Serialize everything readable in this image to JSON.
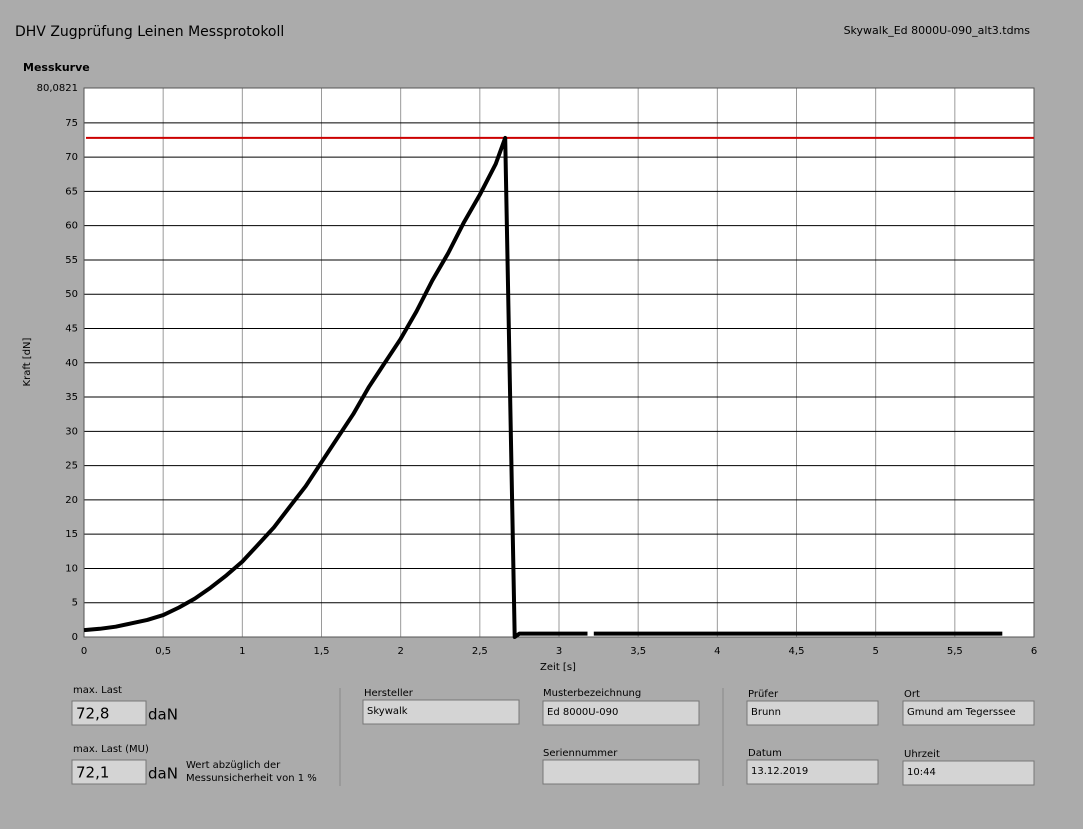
{
  "header": {
    "title": "DHV Zugprüfung Leinen Messprotokoll",
    "file": "Skywalk_Ed 8000U-090_alt3.tdms"
  },
  "chart_data": {
    "type": "line",
    "title": "Messkurve",
    "xlabel": "Zeit [s]",
    "ylabel": "Kraft [dN]",
    "x": [
      0,
      0.1,
      0.2,
      0.3,
      0.4,
      0.5,
      0.6,
      0.7,
      0.8,
      0.9,
      1,
      1.1,
      1.2,
      1.3,
      1.4,
      1.5,
      1.6,
      1.7,
      1.8,
      1.9,
      2,
      2.1,
      2.2,
      2.3,
      2.4,
      2.5,
      2.6,
      2.66,
      2.72,
      2.75,
      3.18,
      3.2,
      3.22,
      5.8
    ],
    "values": [
      1,
      1.2,
      1.5,
      2,
      2.5,
      3.2,
      4.3,
      5.6,
      7.2,
      9,
      11,
      13.5,
      16,
      19,
      22,
      25.5,
      29,
      32.5,
      36.5,
      40,
      43.5,
      47.5,
      52,
      56,
      60.5,
      64.5,
      69,
      72.8,
      0,
      0.5,
      0.5,
      null,
      0.5,
      0.5
    ],
    "color": "#000000",
    "reference_line": {
      "value": 72.8,
      "color": "#cc0000"
    },
    "xlim": [
      0,
      6
    ],
    "xticks": [
      0,
      {
        "value": 0.5,
        "label": "0,5"
      },
      1,
      {
        "value": 1.5,
        "label": "1,5"
      },
      2,
      {
        "value": 2.5,
        "label": "2,5"
      },
      3,
      {
        "value": 3.5,
        "label": "3,5"
      },
      4,
      {
        "value": 4.5,
        "label": "4,5"
      },
      5,
      {
        "value": 5.5,
        "label": "5,5"
      },
      6
    ],
    "ylim": [
      0,
      80.0821
    ],
    "yticks": [
      0,
      5,
      10,
      15,
      20,
      25,
      30,
      35,
      40,
      45,
      50,
      55,
      60,
      65,
      70,
      75,
      {
        "value": 80.0821,
        "label": "80,0821"
      }
    ],
    "grid": true
  },
  "results": {
    "max_label": "max. Last",
    "max_value": "72,8",
    "max_unit": "daN",
    "mu_label": "max. Last (MU)",
    "mu_value": "72,1",
    "mu_unit": "daN",
    "note": [
      "Wert abzüglich der",
      "Messunsicherheit von 1 %"
    ]
  },
  "fields": {
    "hersteller": {
      "label": "Hersteller",
      "value": "Skywalk"
    },
    "muster": {
      "label": "Musterbezeichnung",
      "value": "Ed 8000U-090"
    },
    "serie": {
      "label": "Seriennummer"
    },
    "pruefer": {
      "label": "Prüfer",
      "value": "Brunn"
    },
    "ort": {
      "label": "Ort",
      "value": "Gmund am Tegerssee"
    },
    "datum": {
      "label": "Datum",
      "value": "13.12.2019"
    },
    "uhrzeit": {
      "label": "Uhrzeit",
      "value": "10:44"
    }
  }
}
